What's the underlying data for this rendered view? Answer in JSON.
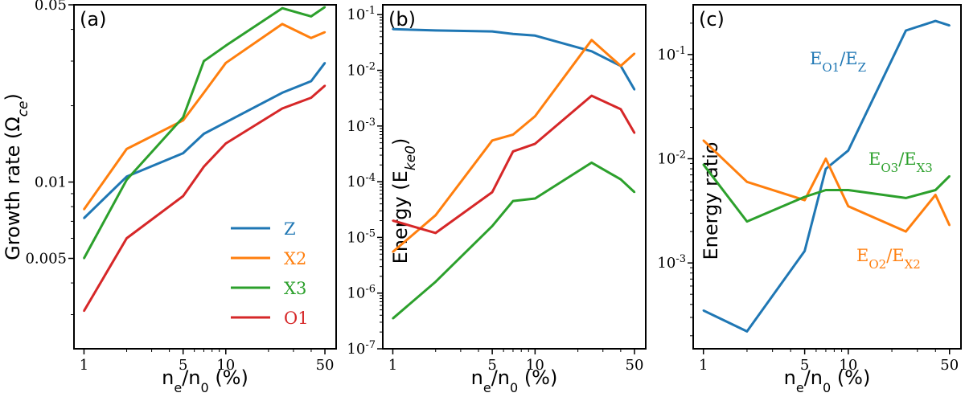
{
  "colors": {
    "Z": "#1f77b4",
    "X2": "#ff7f0e",
    "X3": "#2ca02c",
    "O1": "#d62728"
  },
  "chart_data": [
    {
      "id": "a",
      "type": "line",
      "panel_label": "(a)",
      "xscale": "log",
      "yscale": "log",
      "xlim": [
        0.85,
        60
      ],
      "ylim": [
        0.0022,
        0.05
      ],
      "xticks": [
        1,
        5,
        10,
        50
      ],
      "xtick_labels": [
        "1",
        "5",
        "10",
        "50"
      ],
      "yticks": [
        0.005,
        0.01,
        0.05
      ],
      "ytick_labels": [
        "0.005",
        "0.01",
        "0.05"
      ],
      "ylabel_parts": [
        "Growth rate (Ω",
        "ce",
        ")"
      ],
      "xlabel_parts": [
        "n",
        "e",
        "/n",
        "0",
        " (%)"
      ],
      "legend_position": "lower-right",
      "legend": [
        "Z",
        "X2",
        "X3",
        "O1"
      ],
      "x": [
        1,
        2,
        5,
        7,
        10,
        25,
        40,
        50
      ],
      "series": [
        {
          "name": "Z",
          "values": [
            0.0072,
            0.0105,
            0.013,
            0.0155,
            0.0172,
            0.0225,
            0.025,
            0.0295
          ]
        },
        {
          "name": "X2",
          "values": [
            0.0078,
            0.0135,
            0.0175,
            0.0225,
            0.0295,
            0.042,
            0.037,
            0.039
          ]
        },
        {
          "name": "X3",
          "values": [
            0.005,
            0.0102,
            0.018,
            0.03,
            0.0345,
            0.0485,
            0.045,
            0.049
          ]
        },
        {
          "name": "O1",
          "values": [
            0.0031,
            0.006,
            0.0088,
            0.0115,
            0.0142,
            0.0195,
            0.0215,
            0.024
          ]
        }
      ]
    },
    {
      "id": "b",
      "type": "line",
      "panel_label": "(b)",
      "xscale": "log",
      "yscale": "log",
      "xlim": [
        0.85,
        60
      ],
      "ylim": [
        1e-07,
        0.15
      ],
      "xticks": [
        1,
        5,
        10,
        50
      ],
      "xtick_labels": [
        "1",
        "5",
        "10",
        "50"
      ],
      "yticks": [
        1e-07,
        1e-06,
        1e-05,
        0.0001,
        0.001,
        0.01,
        0.1
      ],
      "ytick_base": "10",
      "ytick_exponents": [
        "-7",
        "-6",
        "-5",
        "-4",
        "-3",
        "-2",
        "-1"
      ],
      "ylabel_parts": [
        "Energy (E",
        "ke0",
        ")"
      ],
      "xlabel_parts": [
        "n",
        "e",
        "/n",
        "0",
        " (%)"
      ],
      "x": [
        1,
        2,
        5,
        7,
        10,
        25,
        40,
        50
      ],
      "series": [
        {
          "name": "Z",
          "values": [
            0.055,
            0.052,
            0.05,
            0.045,
            0.042,
            0.022,
            0.012,
            0.0045
          ]
        },
        {
          "name": "X2",
          "values": [
            5.5e-06,
            2.5e-05,
            0.00055,
            0.0007,
            0.0015,
            0.035,
            0.012,
            0.02
          ]
        },
        {
          "name": "X3",
          "values": [
            3.5e-07,
            1.6e-06,
            1.6e-05,
            4.5e-05,
            5e-05,
            0.00022,
            0.00011,
            6.5e-05
          ]
        },
        {
          "name": "O1",
          "values": [
            2e-05,
            1.2e-05,
            6.5e-05,
            0.00035,
            0.00048,
            0.0035,
            0.002,
            0.00075
          ]
        }
      ]
    },
    {
      "id": "c",
      "type": "line",
      "panel_label": "(c)",
      "xscale": "log",
      "yscale": "log",
      "xlim": [
        0.85,
        60
      ],
      "ylim": [
        0.00015,
        0.3
      ],
      "xticks": [
        1,
        5,
        10,
        50
      ],
      "xtick_labels": [
        "1",
        "5",
        "10",
        "50"
      ],
      "yticks": [
        0.001,
        0.01,
        0.1
      ],
      "ytick_base": "10",
      "ytick_exponents": [
        "-3",
        "-2",
        "-1"
      ],
      "ylabel": "Energy ratio",
      "xlabel_parts": [
        "n",
        "e",
        "/n",
        "0",
        " (%)"
      ],
      "x": [
        1,
        2,
        5,
        7,
        10,
        25,
        40,
        50
      ],
      "series": [
        {
          "name": "O1/Z",
          "color_key": "Z",
          "values": [
            0.00035,
            0.00022,
            0.0013,
            0.008,
            0.012,
            0.17,
            0.21,
            0.19
          ]
        },
        {
          "name": "O2/X2",
          "color_key": "X2",
          "values": [
            0.015,
            0.006,
            0.004,
            0.01,
            0.0035,
            0.002,
            0.0045,
            0.0023
          ]
        },
        {
          "name": "O3/X3",
          "color_key": "X3",
          "values": [
            0.0088,
            0.0025,
            0.0043,
            0.005,
            0.005,
            0.0042,
            0.005,
            0.0068
          ]
        }
      ],
      "annotations": [
        {
          "color_key": "Z",
          "num": "E",
          "num_sub": "O1",
          "den": "/E",
          "den_sub": "Z",
          "anchor": "upper-middle"
        },
        {
          "color_key": "X3",
          "num": "E",
          "num_sub": "O3",
          "den": "/E",
          "den_sub": "X3",
          "anchor": "right-middle"
        },
        {
          "color_key": "X2",
          "num": "E",
          "num_sub": "O2",
          "den": "/E",
          "den_sub": "X2",
          "anchor": "lower-right"
        }
      ]
    }
  ]
}
